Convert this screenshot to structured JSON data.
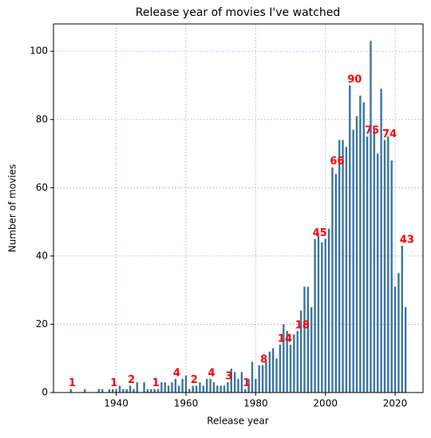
{
  "chart_data": {
    "type": "bar",
    "title": "Release year of movies I've watched",
    "x_label": "Release year",
    "y_label": "Number of movies",
    "x": [
      1927,
      1931,
      1935,
      1936,
      1938,
      1939,
      1940,
      1941,
      1942,
      1943,
      1944,
      1945,
      1946,
      1948,
      1949,
      1950,
      1951,
      1952,
      1953,
      1954,
      1955,
      1956,
      1957,
      1958,
      1959,
      1960,
      1961,
      1962,
      1963,
      1964,
      1965,
      1966,
      1967,
      1968,
      1969,
      1970,
      1971,
      1972,
      1973,
      1974,
      1975,
      1976,
      1977,
      1978,
      1979,
      1980,
      1981,
      1982,
      1983,
      1984,
      1985,
      1986,
      1987,
      1988,
      1989,
      1990,
      1991,
      1992,
      1993,
      1994,
      1995,
      1996,
      1997,
      1998,
      1999,
      2000,
      2001,
      2002,
      2003,
      2004,
      2005,
      2006,
      2007,
      2008,
      2009,
      2010,
      2011,
      2012,
      2013,
      2014,
      2015,
      2016,
      2017,
      2018,
      2019,
      2020,
      2021,
      2022,
      2023
    ],
    "values": [
      1,
      1,
      1,
      1,
      1,
      1,
      1,
      2,
      1,
      1,
      2,
      1,
      3,
      3,
      1,
      1,
      1,
      1,
      3,
      3,
      2,
      3,
      4,
      2,
      4,
      5,
      1,
      2,
      2,
      3,
      2,
      4,
      4,
      3,
      2,
      2,
      2,
      3,
      7,
      6,
      4,
      6,
      1,
      4,
      9,
      4,
      8,
      8,
      9,
      12,
      13,
      10,
      14,
      20,
      18,
      14,
      17,
      18,
      24,
      31,
      31,
      25,
      45,
      46,
      44,
      45,
      48,
      66,
      64,
      74,
      74,
      72,
      90,
      77,
      81,
      87,
      85,
      75,
      103,
      77,
      70,
      89,
      74,
      75,
      68,
      31,
      35,
      43,
      25
    ],
    "color": "#3b75a2",
    "annotations": [
      {
        "x": 1927,
        "text": "1"
      },
      {
        "x": 1939,
        "text": "1"
      },
      {
        "x": 1944,
        "text": "2"
      },
      {
        "x": 1951,
        "text": "1"
      },
      {
        "x": 1957,
        "text": "4"
      },
      {
        "x": 1962,
        "text": "2"
      },
      {
        "x": 1967,
        "text": "4"
      },
      {
        "x": 1972,
        "text": "3"
      },
      {
        "x": 1977,
        "text": "1"
      },
      {
        "x": 1982,
        "text": "8"
      },
      {
        "x": 1987,
        "text": "14"
      },
      {
        "x": 1992,
        "text": "18"
      },
      {
        "x": 1997,
        "text": "45"
      },
      {
        "x": 2002,
        "text": "66"
      },
      {
        "x": 2007,
        "text": "90"
      },
      {
        "x": 2012,
        "text": "75"
      },
      {
        "x": 2017,
        "text": "74"
      },
      {
        "x": 2022,
        "text": "43"
      }
    ],
    "annotation_color": "red",
    "xlim": [
      1922,
      2028
    ],
    "xticks": [
      1940,
      1960,
      1980,
      2000,
      2020
    ],
    "ylim": [
      0,
      108
    ],
    "yticks": [
      0,
      20,
      40,
      60,
      80,
      100
    ],
    "grid": true,
    "grid_color": "blue"
  }
}
